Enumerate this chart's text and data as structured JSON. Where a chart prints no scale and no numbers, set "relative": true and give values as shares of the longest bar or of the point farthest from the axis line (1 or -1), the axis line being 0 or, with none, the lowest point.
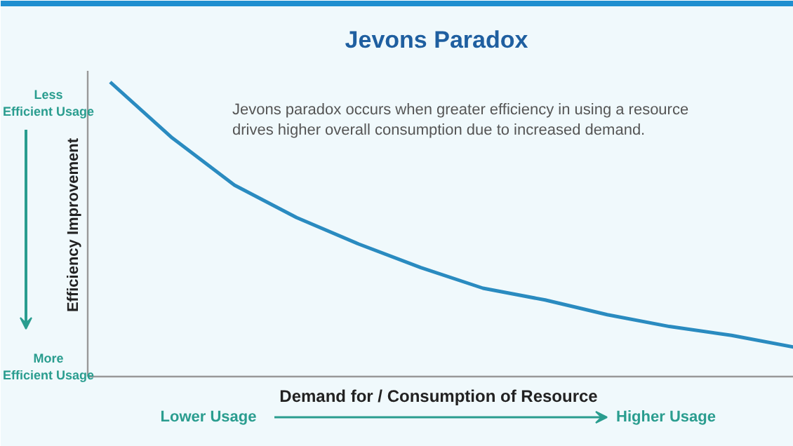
{
  "chart_data": {
    "type": "line",
    "title": "Jevons Paradox",
    "xlabel": "Demand for / Consumption of Resource",
    "ylabel": "Efficiency Improvement",
    "relative": true,
    "color": "#2a8bc0",
    "categories": [
      null,
      null,
      null,
      null,
      null,
      null,
      null,
      null,
      null,
      null,
      null,
      null
    ],
    "values": [
      1,
      0.81,
      0.65,
      0.54,
      0.45,
      0.37,
      0.3,
      0.26,
      0.21,
      0.17,
      0.14,
      0.1
    ],
    "annotations": [
      "Jevons paradox occurs when greater efficiency in using a resource\ndrives higher overall consumption due to increased demand.",
      "Less\nEfficient Usage",
      "More\nEfficient Usage",
      "Lower Usage",
      "Higher Usage"
    ]
  }
}
